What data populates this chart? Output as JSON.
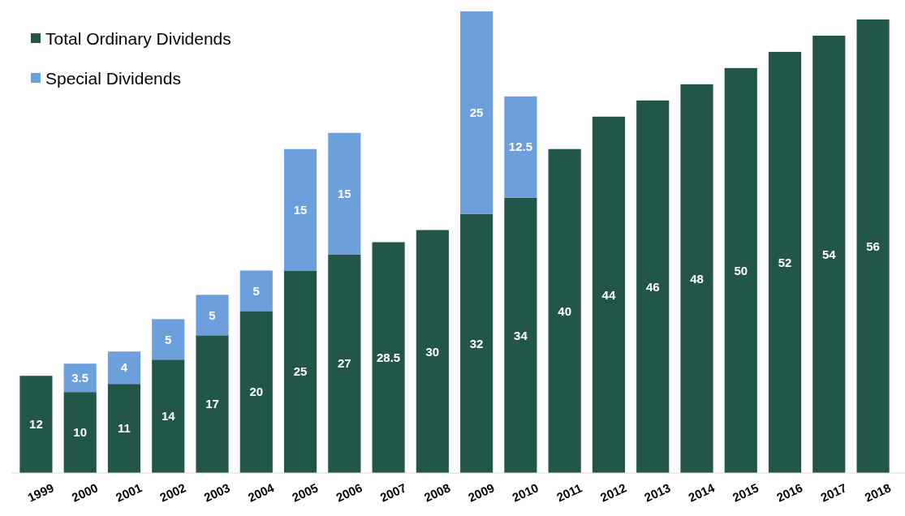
{
  "chart_data": {
    "type": "bar",
    "stacked": true,
    "data_labels": true,
    "legend": "top left",
    "tick_labels": "x",
    "ylim": [
      0,
      57
    ],
    "categories": [
      "1999",
      "2000",
      "2001",
      "2002",
      "2003",
      "2004",
      "2005",
      "2006",
      "2007",
      "2008",
      "2009",
      "2010",
      "2011",
      "2012",
      "2013",
      "2014",
      "2015",
      "2016",
      "2017",
      "2018"
    ],
    "series": [
      {
        "name": "Total Ordinary Dividends",
        "color": "#22564a",
        "values": [
          12,
          10,
          11,
          14,
          17,
          20,
          25,
          27,
          28.5,
          30,
          32,
          34,
          40,
          44,
          46,
          48,
          50,
          52,
          54,
          56
        ]
      },
      {
        "name": "Special Dividends",
        "color": "#6d9fdc",
        "values": [
          null,
          3.5,
          4,
          5,
          5,
          5,
          15,
          15,
          null,
          null,
          25,
          12.5,
          null,
          null,
          null,
          null,
          null,
          null,
          null,
          null
        ]
      }
    ]
  }
}
